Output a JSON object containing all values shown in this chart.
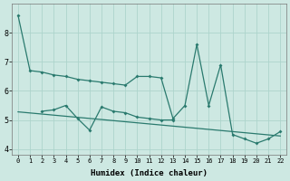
{
  "xlabel": "Humidex (Indice chaleur)",
  "background_color": "#cde8e2",
  "line_color": "#2a7a6e",
  "grid_color": "#add4cc",
  "x_all": [
    0,
    1,
    2,
    3,
    4,
    5,
    6,
    7,
    8,
    9,
    10,
    11,
    12,
    13,
    14,
    15,
    16,
    17,
    18,
    19,
    20,
    21,
    22
  ],
  "line1_y": [
    8.6,
    6.7,
    6.65,
    6.55,
    6.5,
    6.4,
    6.35,
    6.3,
    6.25,
    6.2,
    6.5,
    6.5,
    6.45,
    5.05,
    5.5,
    7.6,
    5.5,
    6.9,
    4.5,
    4.35,
    4.2,
    4.35,
    4.6
  ],
  "line2_x": [
    2,
    3,
    4,
    5,
    6,
    7,
    8,
    9,
    10,
    11,
    12,
    13
  ],
  "line2_y": [
    5.3,
    5.35,
    5.5,
    5.05,
    4.65,
    5.45,
    5.3,
    5.25,
    5.1,
    5.05,
    5.0,
    5.0
  ],
  "trend_x": [
    0,
    22
  ],
  "trend_y": [
    5.28,
    4.45
  ],
  "ylim": [
    3.8,
    9.0
  ],
  "xlim": [
    -0.5,
    22.5
  ],
  "yticks": [
    4,
    5,
    6,
    7,
    8
  ],
  "xticks": [
    0,
    1,
    2,
    3,
    4,
    5,
    6,
    7,
    8,
    9,
    10,
    11,
    12,
    13,
    14,
    15,
    16,
    17,
    18,
    19,
    20,
    21,
    22
  ]
}
